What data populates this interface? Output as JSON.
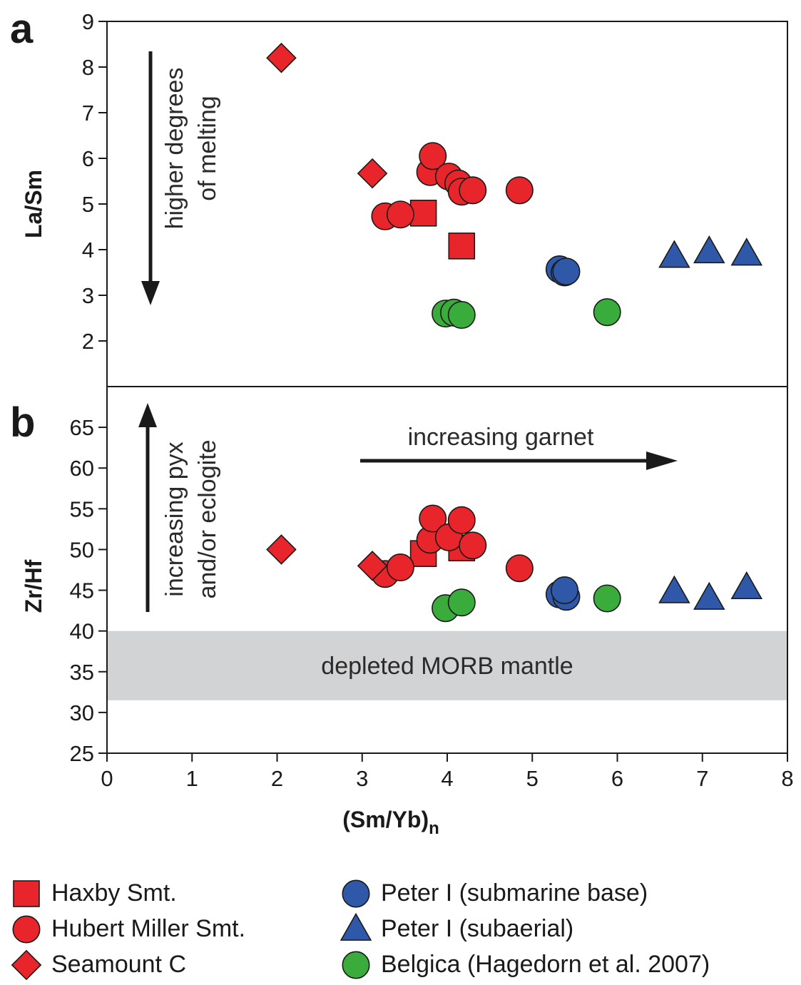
{
  "panel_a_label": "a",
  "panel_b_label": "b",
  "colors": {
    "red": "#e8252a",
    "blue": "#2f58a8",
    "green": "#3aac3c",
    "band": "#d2d3d5"
  },
  "chart_data": [
    {
      "type": "scatter",
      "panel": "a",
      "xlabel": "",
      "ylabel": "La/Sm",
      "xlim": [
        0,
        8
      ],
      "ylim": [
        1,
        9
      ],
      "yticks": [
        2,
        3,
        4,
        5,
        6,
        7,
        8,
        9
      ],
      "annotations": [
        {
          "text": "higher degrees of melting",
          "lines": [
            "higher degrees",
            "of melting"
          ],
          "arrow": "down"
        }
      ],
      "series": [
        {
          "name": "Haxby Smt.",
          "marker": "square",
          "color": "red",
          "points": [
            [
              3.72,
              4.8
            ],
            [
              4.17,
              4.08
            ]
          ]
        },
        {
          "name": "Hubert Miller Smt.",
          "marker": "circle",
          "color": "red",
          "points": [
            [
              3.27,
              4.73
            ],
            [
              3.45,
              4.77
            ],
            [
              3.8,
              5.7
            ],
            [
              3.83,
              6.05
            ],
            [
              4.02,
              5.6
            ],
            [
              4.13,
              5.45
            ],
            [
              4.17,
              5.27
            ],
            [
              4.3,
              5.3
            ],
            [
              4.85,
              5.3
            ]
          ]
        },
        {
          "name": "Seamount C",
          "marker": "diamond",
          "color": "red",
          "points": [
            [
              2.05,
              8.2
            ],
            [
              3.12,
              5.67
            ]
          ]
        },
        {
          "name": "Peter I (submarine base)",
          "marker": "circle",
          "color": "blue",
          "points": [
            [
              5.32,
              3.57
            ],
            [
              5.38,
              3.5
            ],
            [
              5.4,
              3.52
            ]
          ]
        },
        {
          "name": "Peter I (subaerial)",
          "marker": "triangle",
          "color": "blue",
          "points": [
            [
              6.67,
              3.85
            ],
            [
              7.08,
              3.95
            ],
            [
              7.52,
              3.9
            ]
          ]
        },
        {
          "name": "Belgica (Hagedorn et al. 2007)",
          "marker": "circle",
          "color": "green",
          "points": [
            [
              3.98,
              2.6
            ],
            [
              4.08,
              2.62
            ],
            [
              4.17,
              2.57
            ],
            [
              5.88,
              2.63
            ]
          ]
        }
      ]
    },
    {
      "type": "scatter",
      "panel": "b",
      "xlabel": "(Sm/Yb)n",
      "ylabel": "Zr/Hf",
      "xlim": [
        0,
        8
      ],
      "ylim": [
        25,
        70
      ],
      "xticks": [
        0,
        1,
        2,
        3,
        4,
        5,
        6,
        7,
        8
      ],
      "yticks": [
        25,
        30,
        35,
        40,
        45,
        50,
        55,
        60,
        65
      ],
      "band": {
        "label": "depleted MORB mantle",
        "y": [
          31.5,
          40
        ]
      },
      "annotations": [
        {
          "text": "increasing pyx and/or eclogite",
          "lines": [
            "increasing pyx",
            "and/or eclogite"
          ],
          "arrow": "up"
        },
        {
          "text": "increasing garnet",
          "arrow": "right"
        }
      ],
      "series": [
        {
          "name": "Haxby Smt.",
          "marker": "square",
          "color": "red",
          "points": [
            [
              3.72,
              49.5
            ],
            [
              4.17,
              50.2
            ]
          ]
        },
        {
          "name": "Hubert Miller Smt.",
          "marker": "circle",
          "color": "red",
          "points": [
            [
              3.27,
              47.0
            ],
            [
              3.45,
              47.8
            ],
            [
              3.8,
              51.2
            ],
            [
              3.83,
              53.8
            ],
            [
              4.02,
              51.5
            ],
            [
              4.17,
              53.6
            ],
            [
              4.3,
              50.5
            ],
            [
              4.85,
              47.7
            ]
          ]
        },
        {
          "name": "Seamount C",
          "marker": "diamond",
          "color": "red",
          "points": [
            [
              2.05,
              50.0
            ],
            [
              3.12,
              48.0
            ]
          ]
        },
        {
          "name": "Peter I (submarine base)",
          "marker": "circle",
          "color": "blue",
          "points": [
            [
              5.32,
              44.5
            ],
            [
              5.4,
              44.2
            ],
            [
              5.38,
              45.0
            ]
          ]
        },
        {
          "name": "Peter I (subaerial)",
          "marker": "triangle",
          "color": "blue",
          "points": [
            [
              6.67,
              44.8
            ],
            [
              7.08,
              44.0
            ],
            [
              7.52,
              45.3
            ]
          ]
        },
        {
          "name": "Belgica (Hagedorn et al. 2007)",
          "marker": "circle",
          "color": "green",
          "points": [
            [
              3.98,
              42.8
            ],
            [
              4.17,
              43.5
            ],
            [
              5.88,
              44.0
            ]
          ]
        }
      ]
    }
  ],
  "legend": [
    {
      "label": "Haxby Smt.",
      "marker": "square",
      "color": "red"
    },
    {
      "label": "Hubert Miller Smt.",
      "marker": "circle",
      "color": "red"
    },
    {
      "label": "Seamount C",
      "marker": "diamond",
      "color": "red"
    },
    {
      "label": "Peter I (submarine base)",
      "marker": "circle",
      "color": "blue"
    },
    {
      "label": "Peter I (subaerial)",
      "marker": "triangle",
      "color": "blue"
    },
    {
      "label": "Belgica (Hagedorn et al. 2007)",
      "marker": "circle",
      "color": "green"
    }
  ]
}
